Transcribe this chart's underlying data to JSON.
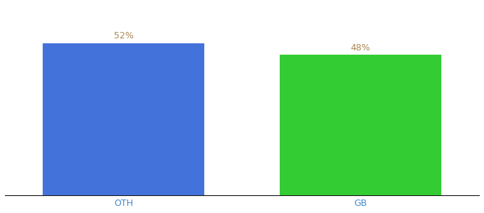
{
  "categories": [
    "OTH",
    "GB"
  ],
  "values": [
    52,
    48
  ],
  "bar_colors": [
    "#4472db",
    "#33cc33"
  ],
  "label_texts": [
    "52%",
    "48%"
  ],
  "xlabel": "",
  "ylabel": "",
  "ylim": [
    0,
    65
  ],
  "background_color": "#ffffff",
  "label_color": "#aa8855",
  "tick_color": "#4488cc",
  "label_fontsize": 9,
  "tick_fontsize": 9,
  "bar_width": 0.75,
  "bar_spacing": 1.1
}
